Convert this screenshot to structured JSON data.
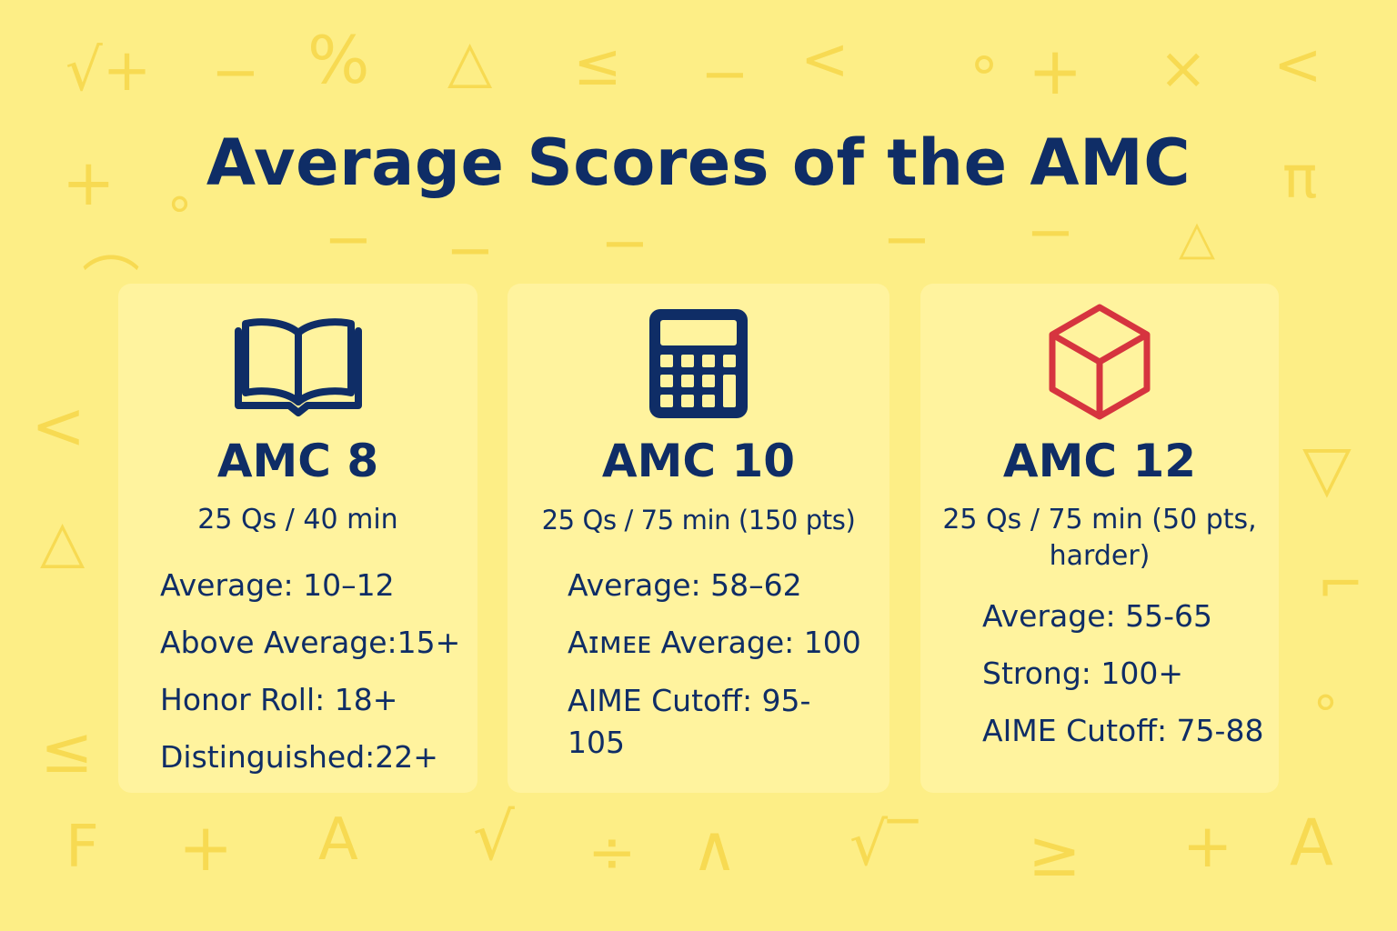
{
  "title": "Average Scores of the AMC",
  "background_symbols": [
    "√+",
    "−",
    "%",
    "△",
    "≤",
    "−",
    "<",
    "∘",
    "+",
    "×",
    "<",
    "+",
    "∘",
    "π",
    "−",
    "−",
    "−",
    "−",
    "−",
    "△",
    "⌒",
    "<",
    "△",
    "▽",
    "≤",
    "∘",
    "⌐",
    "F",
    "+",
    "A",
    "√",
    "÷",
    "∧",
    "√‾",
    "≥",
    "+",
    "A"
  ],
  "colors": {
    "background": "#fdee86",
    "card": "#fff39e",
    "navy": "#0f2d66",
    "cube_red": "#d6343f",
    "symbol": "#f7da52"
  },
  "cards": [
    {
      "icon": "open-book-icon",
      "name": "AMC 8",
      "format": "25 Qs / 40 min",
      "stats": [
        "Average: 10–12",
        "Above Average:15+",
        "Honor Roll: 18+",
        "Distinguished:22+"
      ]
    },
    {
      "icon": "calculator-icon",
      "name": "AMC 10",
      "format": "25 Qs / 75 min (150 pts)",
      "stats": [
        "Average: 58–62",
        "Aɪᴍᴇᴇ  Average: 100",
        "AIME Cutoff: 95-105"
      ]
    },
    {
      "icon": "cube-icon",
      "name": "AMC 12",
      "format": "25 Qs / 75 min (50 pts, harder)",
      "stats": [
        "Average: 55-65",
        "Strong: 100+",
        "AIME Cutoff:  75-88"
      ]
    }
  ]
}
